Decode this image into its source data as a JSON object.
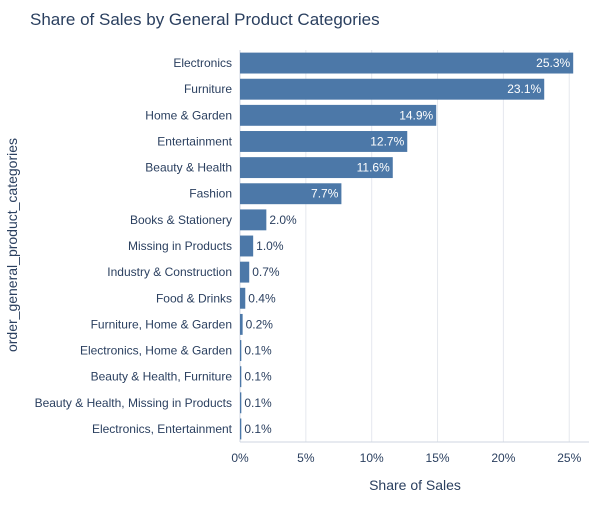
{
  "colors": {
    "bar": "#4c78a8",
    "grid": "#e5e8ee",
    "axis_line": "#cfd6e0",
    "text": "#2a3f5f",
    "inside_label": "#ffffff"
  },
  "chart_data": {
    "type": "bar",
    "orientation": "horizontal",
    "title": "Share of Sales by General Product Categories",
    "xlabel": "Share of Sales",
    "ylabel": "order_general_product_categories",
    "xlim": [
      0,
      26.5
    ],
    "xticks": [
      0,
      5,
      10,
      15,
      20,
      25
    ],
    "xtick_labels": [
      "0%",
      "5%",
      "10%",
      "15%",
      "20%",
      "25%"
    ],
    "grid": true,
    "categories": [
      "Electronics",
      "Furniture",
      "Home & Garden",
      "Entertainment",
      "Beauty & Health",
      "Fashion",
      "Books & Stationery",
      "Missing in Products",
      "Industry & Construction",
      "Food & Drinks",
      "Furniture, Home & Garden",
      "Electronics, Home & Garden",
      "Beauty & Health, Furniture",
      "Beauty & Health, Missing in Products",
      "Electronics, Entertainment"
    ],
    "values": [
      25.3,
      23.1,
      14.9,
      12.7,
      11.6,
      7.7,
      2.0,
      1.0,
      0.7,
      0.4,
      0.2,
      0.1,
      0.1,
      0.1,
      0.1
    ],
    "value_labels": [
      "25.3%",
      "23.1%",
      "14.9%",
      "12.7%",
      "11.6%",
      "7.7%",
      "2.0%",
      "1.0%",
      "0.7%",
      "0.4%",
      "0.2%",
      "0.1%",
      "0.1%",
      "0.1%",
      "0.1%"
    ]
  }
}
